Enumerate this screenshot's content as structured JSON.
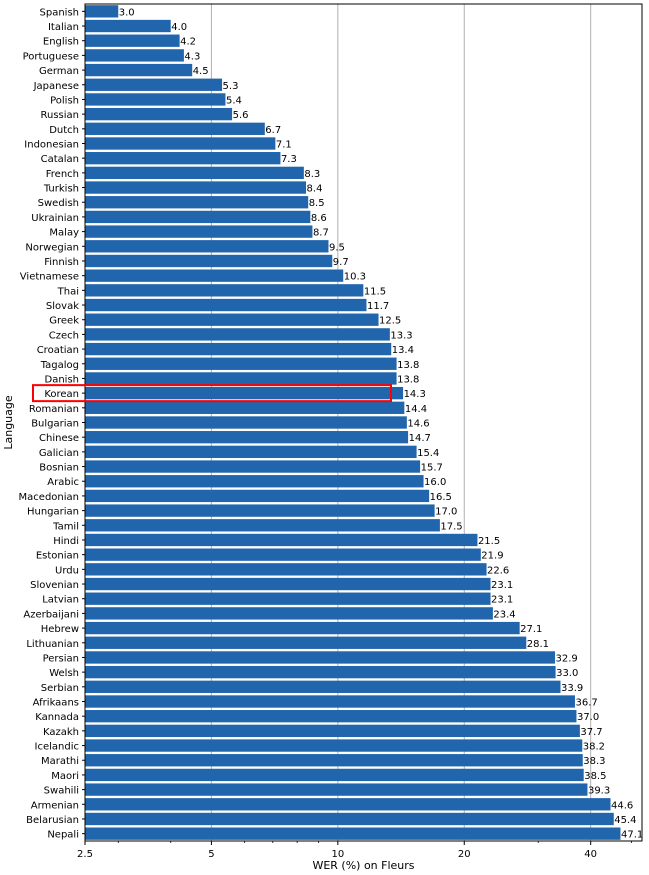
{
  "chart_data": {
    "type": "bar",
    "orientation": "horizontal",
    "xlabel": "WER (%) on Fleurs",
    "ylabel": "Language",
    "x_scale": "log",
    "xlim": [
      2.5,
      53
    ],
    "x_ticks": [
      2.5,
      5,
      10,
      20,
      40
    ],
    "x_tick_labels": [
      "2.5",
      "5",
      "10",
      "20",
      "40"
    ],
    "grid": "vertical",
    "bar_color": "#2166ac",
    "highlight": {
      "category": "Korean",
      "color": "#ff0000"
    },
    "categories": [
      "Spanish",
      "Italian",
      "English",
      "Portuguese",
      "German",
      "Japanese",
      "Polish",
      "Russian",
      "Dutch",
      "Indonesian",
      "Catalan",
      "French",
      "Turkish",
      "Swedish",
      "Ukrainian",
      "Malay",
      "Norwegian",
      "Finnish",
      "Vietnamese",
      "Thai",
      "Slovak",
      "Greek",
      "Czech",
      "Croatian",
      "Tagalog",
      "Danish",
      "Korean",
      "Romanian",
      "Bulgarian",
      "Chinese",
      "Galician",
      "Bosnian",
      "Arabic",
      "Macedonian",
      "Hungarian",
      "Tamil",
      "Hindi",
      "Estonian",
      "Urdu",
      "Slovenian",
      "Latvian",
      "Azerbaijani",
      "Hebrew",
      "Lithuanian",
      "Persian",
      "Welsh",
      "Serbian",
      "Afrikaans",
      "Kannada",
      "Kazakh",
      "Icelandic",
      "Marathi",
      "Maori",
      "Swahili",
      "Armenian",
      "Belarusian",
      "Nepali"
    ],
    "values": [
      3.0,
      4.0,
      4.2,
      4.3,
      4.5,
      5.3,
      5.4,
      5.6,
      6.7,
      7.1,
      7.3,
      8.3,
      8.4,
      8.5,
      8.6,
      8.7,
      9.5,
      9.7,
      10.3,
      11.5,
      11.7,
      12.5,
      13.3,
      13.4,
      13.8,
      13.8,
      14.3,
      14.4,
      14.6,
      14.7,
      15.4,
      15.7,
      16.0,
      16.5,
      17.0,
      17.5,
      21.5,
      21.9,
      22.6,
      23.1,
      23.1,
      23.4,
      27.1,
      28.1,
      32.9,
      33.0,
      33.9,
      36.7,
      37.0,
      37.7,
      38.2,
      38.3,
      38.5,
      39.3,
      44.6,
      45.4,
      47.1
    ],
    "value_labels": [
      "3.0",
      "4.0",
      "4.2",
      "4.3",
      "4.5",
      "5.3",
      "5.4",
      "5.6",
      "6.7",
      "7.1",
      "7.3",
      "8.3",
      "8.4",
      "8.5",
      "8.6",
      "8.7",
      "9.5",
      "9.7",
      "10.3",
      "11.5",
      "11.7",
      "12.5",
      "13.3",
      "13.4",
      "13.8",
      "13.8",
      "14.3",
      "14.4",
      "14.6",
      "14.7",
      "15.4",
      "15.7",
      "16.0",
      "16.5",
      "17.0",
      "17.5",
      "21.5",
      "21.9",
      "22.6",
      "23.1",
      "23.1",
      "23.4",
      "27.1",
      "28.1",
      "32.9",
      "33.0",
      "33.9",
      "36.7",
      "37.0",
      "37.7",
      "38.2",
      "38.3",
      "38.5",
      "39.3",
      "44.6",
      "45.4",
      "47.1"
    ]
  }
}
